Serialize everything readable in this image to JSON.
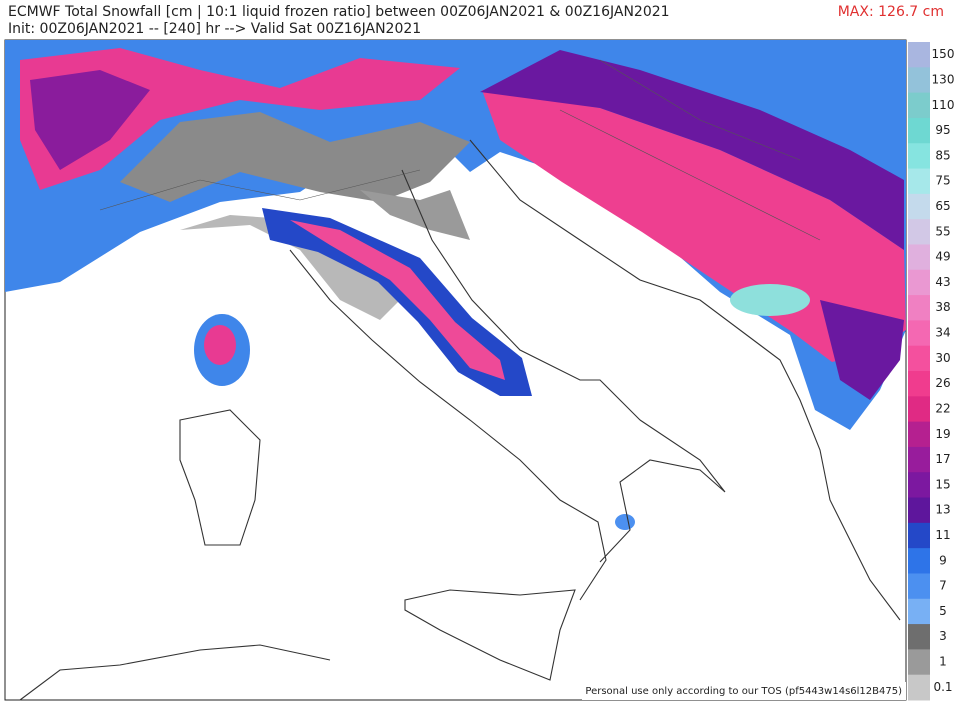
{
  "header": {
    "title": "ECMWF Total Snowfall [cm | 10:1 liquid frozen ratio] between 00Z06JAN2021 & 00Z16JAN2021",
    "subtitle": "Init: 00Z06JAN2021 -- [240] hr --> Valid Sat 00Z16JAN2021",
    "max_label": "MAX: 126.7 cm"
  },
  "legend": {
    "items": [
      {
        "label": "150",
        "color": "#a9b6e0"
      },
      {
        "label": "130",
        "color": "#93c2da"
      },
      {
        "label": "110",
        "color": "#7ccccc"
      },
      {
        "label": "95",
        "color": "#6ed8d2"
      },
      {
        "label": "85",
        "color": "#86e4e0"
      },
      {
        "label": "75",
        "color": "#a6e8ea"
      },
      {
        "label": "65",
        "color": "#c4daec"
      },
      {
        "label": "55",
        "color": "#d2c8e6"
      },
      {
        "label": "49",
        "color": "#e0b0de"
      },
      {
        "label": "43",
        "color": "#ea98d2"
      },
      {
        "label": "38",
        "color": "#f080c2"
      },
      {
        "label": "34",
        "color": "#f468b2"
      },
      {
        "label": "30",
        "color": "#f4509e"
      },
      {
        "label": "26",
        "color": "#f03c8e"
      },
      {
        "label": "22",
        "color": "#e02a84"
      },
      {
        "label": "19",
        "color": "#b52090"
      },
      {
        "label": "17",
        "color": "#981c9c"
      },
      {
        "label": "15",
        "color": "#7c18a0"
      },
      {
        "label": "13",
        "color": "#5e169c"
      },
      {
        "label": "11",
        "color": "#2448c8"
      },
      {
        "label": "9",
        "color": "#2e74e8"
      },
      {
        "label": "7",
        "color": "#4c90f0"
      },
      {
        "label": "5",
        "color": "#78b0f4"
      },
      {
        "label": "3",
        "color": "#6e6e6e"
      },
      {
        "label": "1",
        "color": "#9a9a9a"
      },
      {
        "label": "0.1",
        "color": "#c8c8c8"
      }
    ]
  },
  "footer": {
    "note": "Personal use only according to our TOS (pf5443w14s6l12B475)"
  }
}
